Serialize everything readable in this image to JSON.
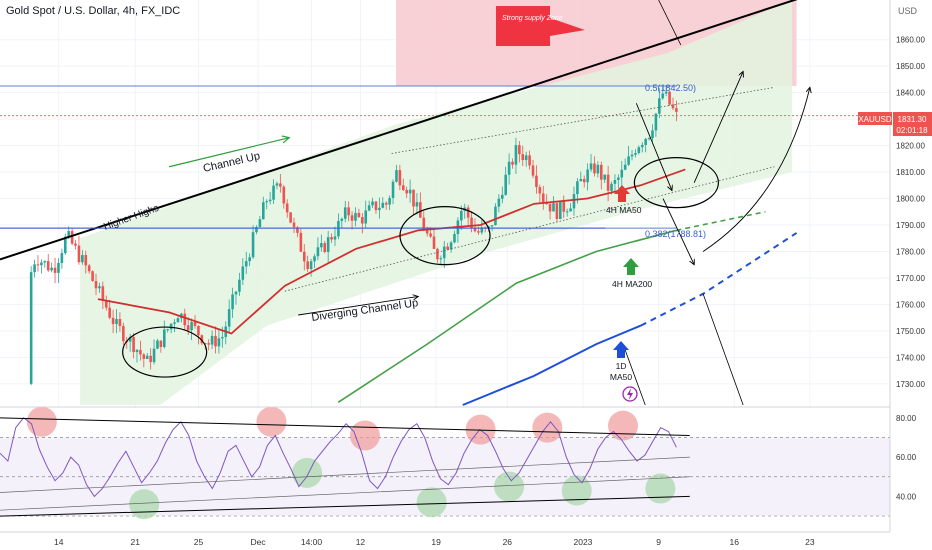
{
  "title": "Gold Spot / U.S. Dollar, 4h, FX_IDC",
  "currency": "USD",
  "symbol": "XAUUSD",
  "price_badge": {
    "price": "1831.30",
    "countdown": "02:01:18"
  },
  "colors": {
    "bull": "#26a69a",
    "bear": "#ef5350",
    "ma50_4h": "#d32f2f",
    "ma200_4h": "#43a047",
    "ma50_1d": "#1e4fd8",
    "rsi_line": "#7e57c2",
    "channel_fill": "#e3f3df",
    "supply_fill": "#f7c9cf",
    "fib_line": "#5b7fd6"
  },
  "annotations": {
    "supply_zone": "Strong supply Zone",
    "channel_up": "Channel Up",
    "higher_highs": "Higher Highs",
    "diverging_channel": "Diverging Channel Up",
    "ma50_4h": "4H MA50",
    "ma200_4h": "4H MA200",
    "ma50_1d_line1": "1D",
    "ma50_1d_line2": "MA50",
    "fib_05": "0.5(1842.50)",
    "fib_0382": "0.382(1788.81)"
  },
  "chart_data": [
    {
      "type": "candlestick",
      "title": "Gold Spot / U.S. Dollar, 4h, FX_IDC",
      "ylabel": "USD",
      "ylim": [
        1722,
        1875
      ],
      "y_ticks": [
        1730,
        1740,
        1750,
        1760,
        1770,
        1780,
        1790,
        1800,
        1810,
        1820,
        1830,
        1840,
        1850,
        1860
      ],
      "x_tick_labels": [
        "14",
        "21",
        "25",
        "Dec",
        "14:00",
        "12",
        "19",
        "26",
        "2023",
        "9",
        "16",
        "23"
      ],
      "x_tick_frac": [
        0.066,
        0.152,
        0.223,
        0.29,
        0.35,
        0.405,
        0.49,
        0.57,
        0.655,
        0.74,
        0.825,
        0.91
      ],
      "last_price": 1831.3,
      "fib_levels": [
        {
          "label": "0.5",
          "value": 1842.5
        },
        {
          "label": "0.382",
          "value": 1788.81
        }
      ],
      "price_path": [
        [
          0.0,
          1730
        ],
        [
          0.02,
          1755
        ],
        [
          0.04,
          1778
        ],
        [
          0.06,
          1773
        ],
        [
          0.075,
          1786
        ],
        [
          0.095,
          1775
        ],
        [
          0.115,
          1762
        ],
        [
          0.13,
          1752
        ],
        [
          0.15,
          1745
        ],
        [
          0.165,
          1738
        ],
        [
          0.18,
          1746
        ],
        [
          0.2,
          1757
        ],
        [
          0.215,
          1752
        ],
        [
          0.235,
          1745
        ],
        [
          0.25,
          1748
        ],
        [
          0.265,
          1765
        ],
        [
          0.285,
          1785
        ],
        [
          0.3,
          1800
        ],
        [
          0.315,
          1805
        ],
        [
          0.33,
          1788
        ],
        [
          0.345,
          1776
        ],
        [
          0.36,
          1780
        ],
        [
          0.375,
          1787
        ],
        [
          0.39,
          1795
        ],
        [
          0.405,
          1792
        ],
        [
          0.42,
          1797
        ],
        [
          0.435,
          1798
        ],
        [
          0.445,
          1810
        ],
        [
          0.46,
          1803
        ],
        [
          0.475,
          1790
        ],
        [
          0.49,
          1778
        ],
        [
          0.505,
          1784
        ],
        [
          0.52,
          1797
        ],
        [
          0.535,
          1787
        ],
        [
          0.55,
          1788
        ],
        [
          0.565,
          1805
        ],
        [
          0.58,
          1818
        ],
        [
          0.595,
          1815
        ],
        [
          0.61,
          1800
        ],
        [
          0.625,
          1795
        ],
        [
          0.64,
          1798
        ],
        [
          0.655,
          1808
        ],
        [
          0.67,
          1812
        ],
        [
          0.685,
          1803
        ],
        [
          0.7,
          1810
        ],
        [
          0.715,
          1820
        ],
        [
          0.73,
          1825
        ],
        [
          0.745,
          1840
        ],
        [
          0.76,
          1831
        ]
      ],
      "indicators": [
        {
          "name": "4H MA50",
          "points": [
            [
              0.11,
              1762
            ],
            [
              0.19,
              1757
            ],
            [
              0.26,
              1749
            ],
            [
              0.32,
              1767
            ],
            [
              0.4,
              1781
            ],
            [
              0.47,
              1788
            ],
            [
              0.54,
              1790
            ],
            [
              0.6,
              1798
            ],
            [
              0.66,
              1800
            ],
            [
              0.72,
              1805
            ],
            [
              0.77,
              1811
            ]
          ]
        },
        {
          "name": "4H MA200",
          "points": [
            [
              0.38,
              1723
            ],
            [
              0.48,
              1745
            ],
            [
              0.58,
              1768
            ],
            [
              0.67,
              1780
            ],
            [
              0.76,
              1788
            ],
            [
              0.86,
              1795
            ]
          ]
        },
        {
          "name": "1D MA50",
          "points": [
            [
              0.52,
              1722
            ],
            [
              0.6,
              1733
            ],
            [
              0.67,
              1745
            ],
            [
              0.72,
              1752
            ],
            [
              0.79,
              1764
            ],
            [
              0.895,
              1787
            ]
          ]
        }
      ]
    },
    {
      "type": "line",
      "name": "RSI",
      "ylim": [
        28,
        85
      ],
      "y_ticks": [
        40,
        60,
        80
      ],
      "reference_lines": [
        70,
        50,
        30
      ],
      "values": [
        62,
        58,
        75,
        80,
        77,
        64,
        55,
        48,
        52,
        60,
        56,
        46,
        40,
        44,
        50,
        57,
        63,
        55,
        47,
        52,
        58,
        67,
        74,
        78,
        71,
        58,
        50,
        44,
        52,
        63,
        66,
        58,
        50,
        55,
        66,
        71,
        62,
        54,
        45,
        50,
        58,
        63,
        68,
        72,
        77,
        73,
        62,
        48,
        44,
        50,
        60,
        68,
        74,
        77,
        70,
        58,
        49,
        46,
        52,
        62,
        69,
        74,
        71,
        63,
        54,
        48,
        52,
        59,
        66,
        73,
        78,
        73,
        60,
        51,
        47,
        54,
        64,
        70,
        73,
        69,
        63,
        58,
        61,
        68,
        75,
        73,
        65
      ]
    }
  ]
}
